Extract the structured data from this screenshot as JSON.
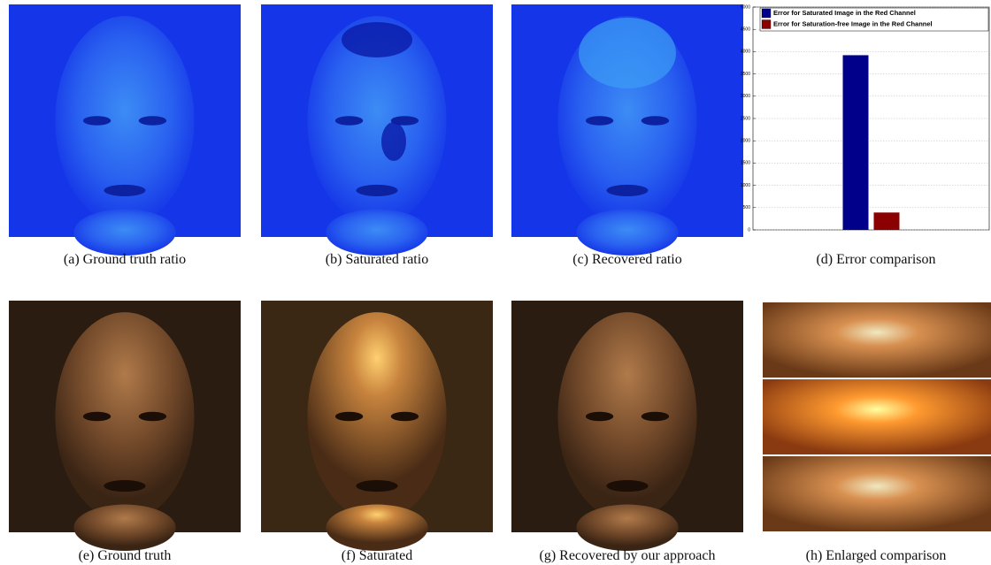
{
  "captions": [
    "(a) Ground truth ratio",
    "(b) Saturated ratio",
    "(c) Recovered ratio",
    "(d) Error comparison",
    "(e) Ground truth",
    "(f) Saturated",
    "(g) Recovered by our approach",
    "(h) Enlarged comparison"
  ],
  "chart_data": {
    "type": "bar",
    "categories": [
      null
    ],
    "series": [
      {
        "name": "Error for Saturated Image in the Red Channel",
        "color": "#00008b",
        "values": [
          3920
        ]
      },
      {
        "name": "Error for Saturation-free Image in the Red Channel",
        "color": "#8b0000",
        "values": [
          390
        ]
      }
    ],
    "ylim": [
      0,
      5000
    ],
    "yticks": [
      0,
      500,
      1000,
      1500,
      2000,
      2500,
      3000,
      3500,
      4000,
      4500,
      5000
    ],
    "grid": true,
    "legend": "top"
  }
}
